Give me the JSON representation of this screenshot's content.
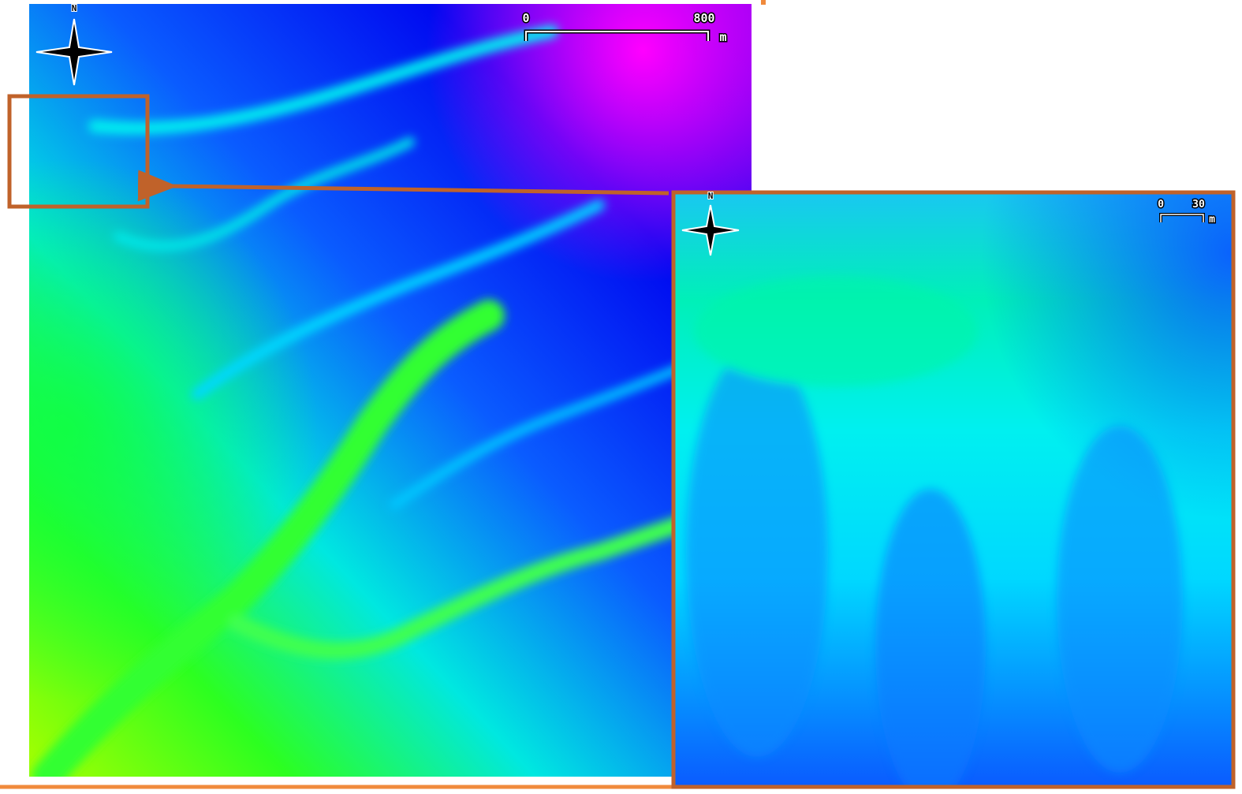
{
  "main_map": {
    "north_label": "N",
    "scale_bar": {
      "start": 0,
      "end": 800,
      "unit": "m"
    }
  },
  "inset_map": {
    "north_label": "N",
    "scale_bar": {
      "start": 0,
      "end": 30,
      "unit": "m"
    }
  }
}
